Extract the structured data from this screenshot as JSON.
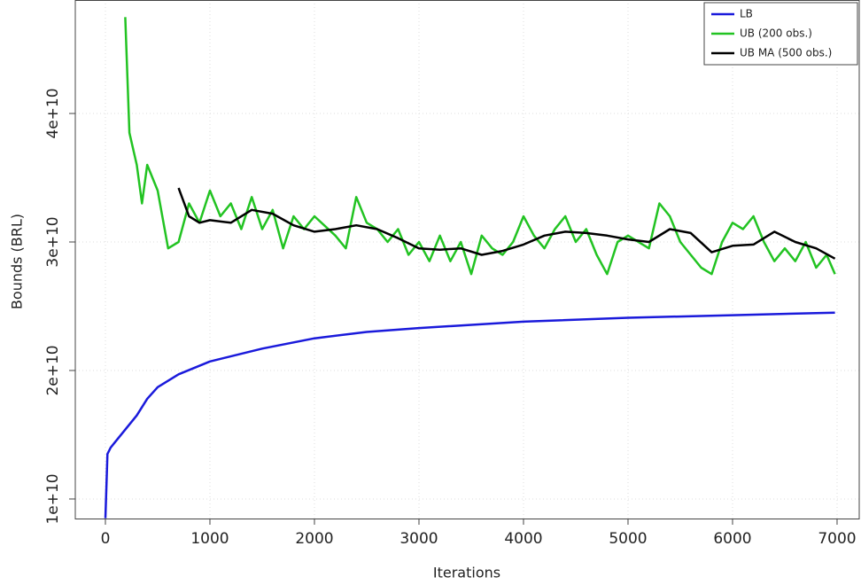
{
  "chart_data": {
    "type": "line",
    "xlabel": "Iterations",
    "ylabel": "Bounds (BRL)",
    "xlim": [
      -288,
      7212
    ],
    "ylim": [
      8480000000.0,
      48830000000.0
    ],
    "xticks": [
      0,
      1000,
      2000,
      3000,
      4000,
      5000,
      6000,
      7000
    ],
    "yticks": [
      {
        "value": 10000000000.0,
        "label": "1e+10"
      },
      {
        "value": 20000000000.0,
        "label": "2e+10"
      },
      {
        "value": 30000000000.0,
        "label": "3e+10"
      },
      {
        "value": 40000000000.0,
        "label": "4e+10"
      }
    ],
    "grid": true,
    "legend": "top-right",
    "series": [
      {
        "name": "LB",
        "color": "#1a1adb",
        "x": [
          0,
          20,
          50,
          100,
          200,
          300,
          400,
          500,
          700,
          1000,
          1500,
          2000,
          2500,
          3000,
          4000,
          5000,
          6000,
          6980
        ],
        "values": [
          8500000000.0,
          13500000000.0,
          14000000000.0,
          14500000000.0,
          15500000000.0,
          16500000000.0,
          17800000000.0,
          18700000000.0,
          19700000000.0,
          20700000000.0,
          21700000000.0,
          22500000000.0,
          23000000000.0,
          23300000000.0,
          23800000000.0,
          24100000000.0,
          24300000000.0,
          24500000000.0
        ]
      },
      {
        "name": "UB (200 obs.)",
        "color": "#22c322",
        "x": [
          190,
          230,
          300,
          350,
          400,
          500,
          600,
          700,
          800,
          900,
          1000,
          1100,
          1200,
          1300,
          1400,
          1500,
          1600,
          1700,
          1800,
          1900,
          2000,
          2200,
          2300,
          2400,
          2500,
          2600,
          2700,
          2800,
          2900,
          3000,
          3100,
          3200,
          3300,
          3400,
          3500,
          3600,
          3700,
          3800,
          3900,
          4000,
          4100,
          4200,
          4300,
          4400,
          4500,
          4600,
          4700,
          4800,
          4900,
          5000,
          5200,
          5300,
          5400,
          5500,
          5700,
          5800,
          5900,
          6000,
          6100,
          6200,
          6300,
          6400,
          6500,
          6600,
          6700,
          6800,
          6900,
          6980
        ],
        "values": [
          47500000000.0,
          38500000000.0,
          36000000000.0,
          33000000000.0,
          36000000000.0,
          34000000000.0,
          29500000000.0,
          30000000000.0,
          33000000000.0,
          31500000000.0,
          34000000000.0,
          32000000000.0,
          33000000000.0,
          31000000000.0,
          33500000000.0,
          31000000000.0,
          32500000000.0,
          29500000000.0,
          32000000000.0,
          31000000000.0,
          32000000000.0,
          30500000000.0,
          29500000000.0,
          33500000000.0,
          31500000000.0,
          31000000000.0,
          30000000000.0,
          31000000000.0,
          29000000000.0,
          30000000000.0,
          28500000000.0,
          30500000000.0,
          28500000000.0,
          30000000000.0,
          27500000000.0,
          30500000000.0,
          29500000000.0,
          29000000000.0,
          30000000000.0,
          32000000000.0,
          30500000000.0,
          29500000000.0,
          31000000000.0,
          32000000000.0,
          30000000000.0,
          31000000000.0,
          29000000000.0,
          27500000000.0,
          30000000000.0,
          30500000000.0,
          29500000000.0,
          33000000000.0,
          32000000000.0,
          30000000000.0,
          28000000000.0,
          27500000000.0,
          30000000000.0,
          31500000000.0,
          31000000000.0,
          32000000000.0,
          30000000000.0,
          28500000000.0,
          29500000000.0,
          28500000000.0,
          30000000000.0,
          28000000000.0,
          29000000000.0,
          27500000000.0
        ]
      },
      {
        "name": "UB MA (500 obs.)",
        "color": "#000000",
        "x": [
          700,
          800,
          900,
          1000,
          1200,
          1400,
          1600,
          1800,
          2000,
          2200,
          2400,
          2600,
          2800,
          3000,
          3200,
          3400,
          3600,
          3800,
          4000,
          4200,
          4400,
          4600,
          4800,
          5000,
          5200,
          5400,
          5600,
          5800,
          6000,
          6200,
          6400,
          6600,
          6800,
          6980
        ],
        "values": [
          34200000000.0,
          32000000000.0,
          31500000000.0,
          31700000000.0,
          31500000000.0,
          32500000000.0,
          32200000000.0,
          31300000000.0,
          30800000000.0,
          31000000000.0,
          31300000000.0,
          31000000000.0,
          30300000000.0,
          29500000000.0,
          29400000000.0,
          29500000000.0,
          29000000000.0,
          29300000000.0,
          29800000000.0,
          30500000000.0,
          30800000000.0,
          30700000000.0,
          30500000000.0,
          30200000000.0,
          30000000000.0,
          31000000000.0,
          30700000000.0,
          29200000000.0,
          29700000000.0,
          29800000000.0,
          30800000000.0,
          30000000000.0,
          29500000000.0,
          28700000000.0
        ]
      }
    ]
  }
}
